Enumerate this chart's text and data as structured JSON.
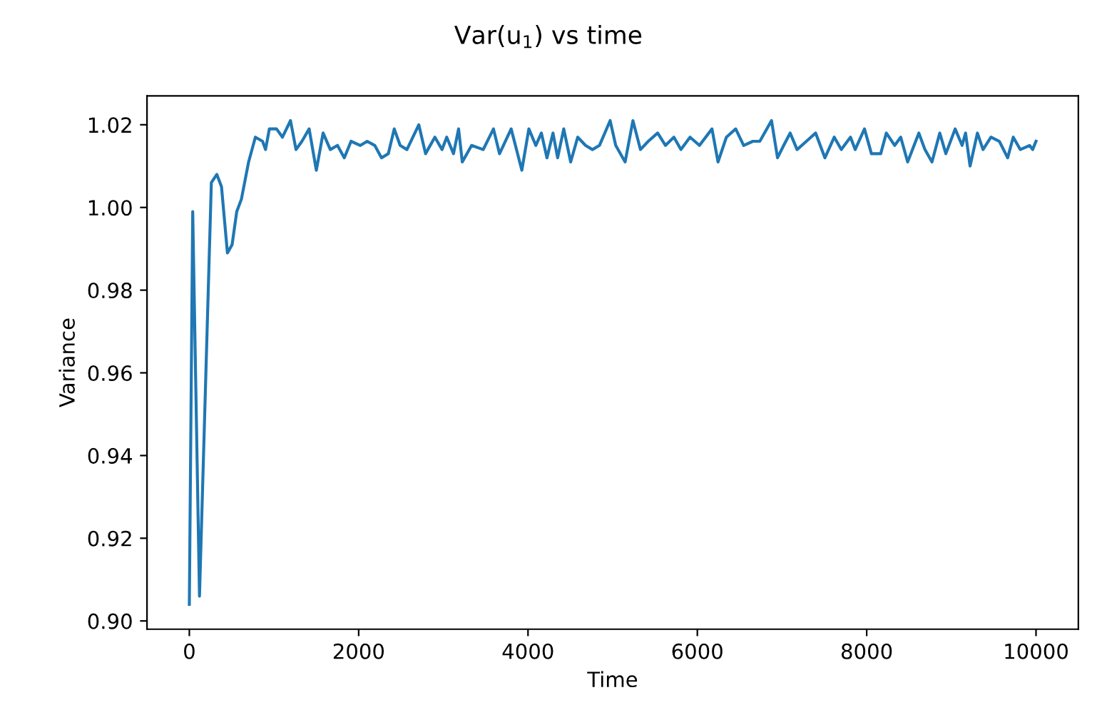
{
  "chart_data": {
    "type": "line",
    "title": "Var(u$_{1}$) vs time",
    "xlabel": "Time",
    "ylabel": "Variance",
    "x": [
      0,
      40,
      120,
      260,
      325,
      380,
      450,
      505,
      560,
      615,
      700,
      780,
      865,
      900,
      945,
      1030,
      1100,
      1195,
      1260,
      1330,
      1415,
      1500,
      1580,
      1665,
      1750,
      1830,
      1910,
      2020,
      2100,
      2190,
      2270,
      2350,
      2420,
      2490,
      2570,
      2710,
      2790,
      2900,
      2985,
      3040,
      3120,
      3180,
      3224,
      3334,
      3471,
      3592,
      3664,
      3801,
      3927,
      4010,
      4092,
      4158,
      4224,
      4295,
      4350,
      4422,
      4504,
      4587,
      4679,
      4761,
      4844,
      4970,
      5036,
      5147,
      5239,
      5328,
      5420,
      5531,
      5624,
      5723,
      5806,
      5914,
      6025,
      6173,
      6244,
      6343,
      6453,
      6547,
      6656,
      6738,
      6876,
      6947,
      7020,
      7096,
      7178,
      7288,
      7397,
      7507,
      7617,
      7700,
      7809,
      7864,
      7974,
      8056,
      8166,
      8232,
      8331,
      8402,
      8484,
      8616,
      8688,
      8771,
      8863,
      8935,
      9045,
      9127,
      9168,
      9221,
      9308,
      9374,
      9468,
      9567,
      9665,
      9731,
      9814,
      9924,
      9960,
      10000
    ],
    "series": [
      {
        "color": "#1f77b4",
        "values": [
          0.904,
          0.999,
          0.906,
          1.006,
          1.008,
          1.005,
          0.989,
          0.991,
          0.999,
          1.002,
          1.011,
          1.017,
          1.016,
          1.014,
          1.019,
          1.019,
          1.017,
          1.021,
          1.014,
          1.016,
          1.019,
          1.009,
          1.018,
          1.014,
          1.015,
          1.012,
          1.016,
          1.015,
          1.016,
          1.015,
          1.012,
          1.013,
          1.019,
          1.015,
          1.014,
          1.02,
          1.013,
          1.017,
          1.014,
          1.017,
          1.013,
          1.019,
          1.011,
          1.015,
          1.014,
          1.019,
          1.013,
          1.019,
          1.009,
          1.019,
          1.015,
          1.018,
          1.012,
          1.018,
          1.012,
          1.019,
          1.011,
          1.017,
          1.015,
          1.014,
          1.015,
          1.021,
          1.015,
          1.011,
          1.021,
          1.014,
          1.016,
          1.018,
          1.015,
          1.017,
          1.014,
          1.017,
          1.015,
          1.019,
          1.011,
          1.017,
          1.019,
          1.015,
          1.016,
          1.016,
          1.021,
          1.012,
          1.015,
          1.018,
          1.014,
          1.016,
          1.018,
          1.012,
          1.017,
          1.014,
          1.017,
          1.014,
          1.019,
          1.013,
          1.013,
          1.018,
          1.015,
          1.017,
          1.011,
          1.018,
          1.014,
          1.011,
          1.018,
          1.013,
          1.019,
          1.015,
          1.018,
          1.01,
          1.018,
          1.014,
          1.017,
          1.016,
          1.012,
          1.017,
          1.014,
          1.015,
          1.014,
          1.016
        ]
      }
    ],
    "xlim": [
      -500,
      10500
    ],
    "ylim": [
      0.898,
      1.027
    ],
    "xticks": [
      0,
      2000,
      4000,
      6000,
      8000,
      10000
    ],
    "yticks": [
      {
        "value": 0.9,
        "label": "0.90"
      },
      {
        "value": 0.92,
        "label": "0.92"
      },
      {
        "value": 0.94,
        "label": "0.94"
      },
      {
        "value": 0.96,
        "label": "0.96"
      },
      {
        "value": 0.98,
        "label": "0.98"
      },
      {
        "value": 1.0,
        "label": "1.00"
      },
      {
        "value": 1.02,
        "label": "1.02"
      }
    ],
    "grid": false,
    "legend": false,
    "marker": "none",
    "line_style": "solid"
  }
}
